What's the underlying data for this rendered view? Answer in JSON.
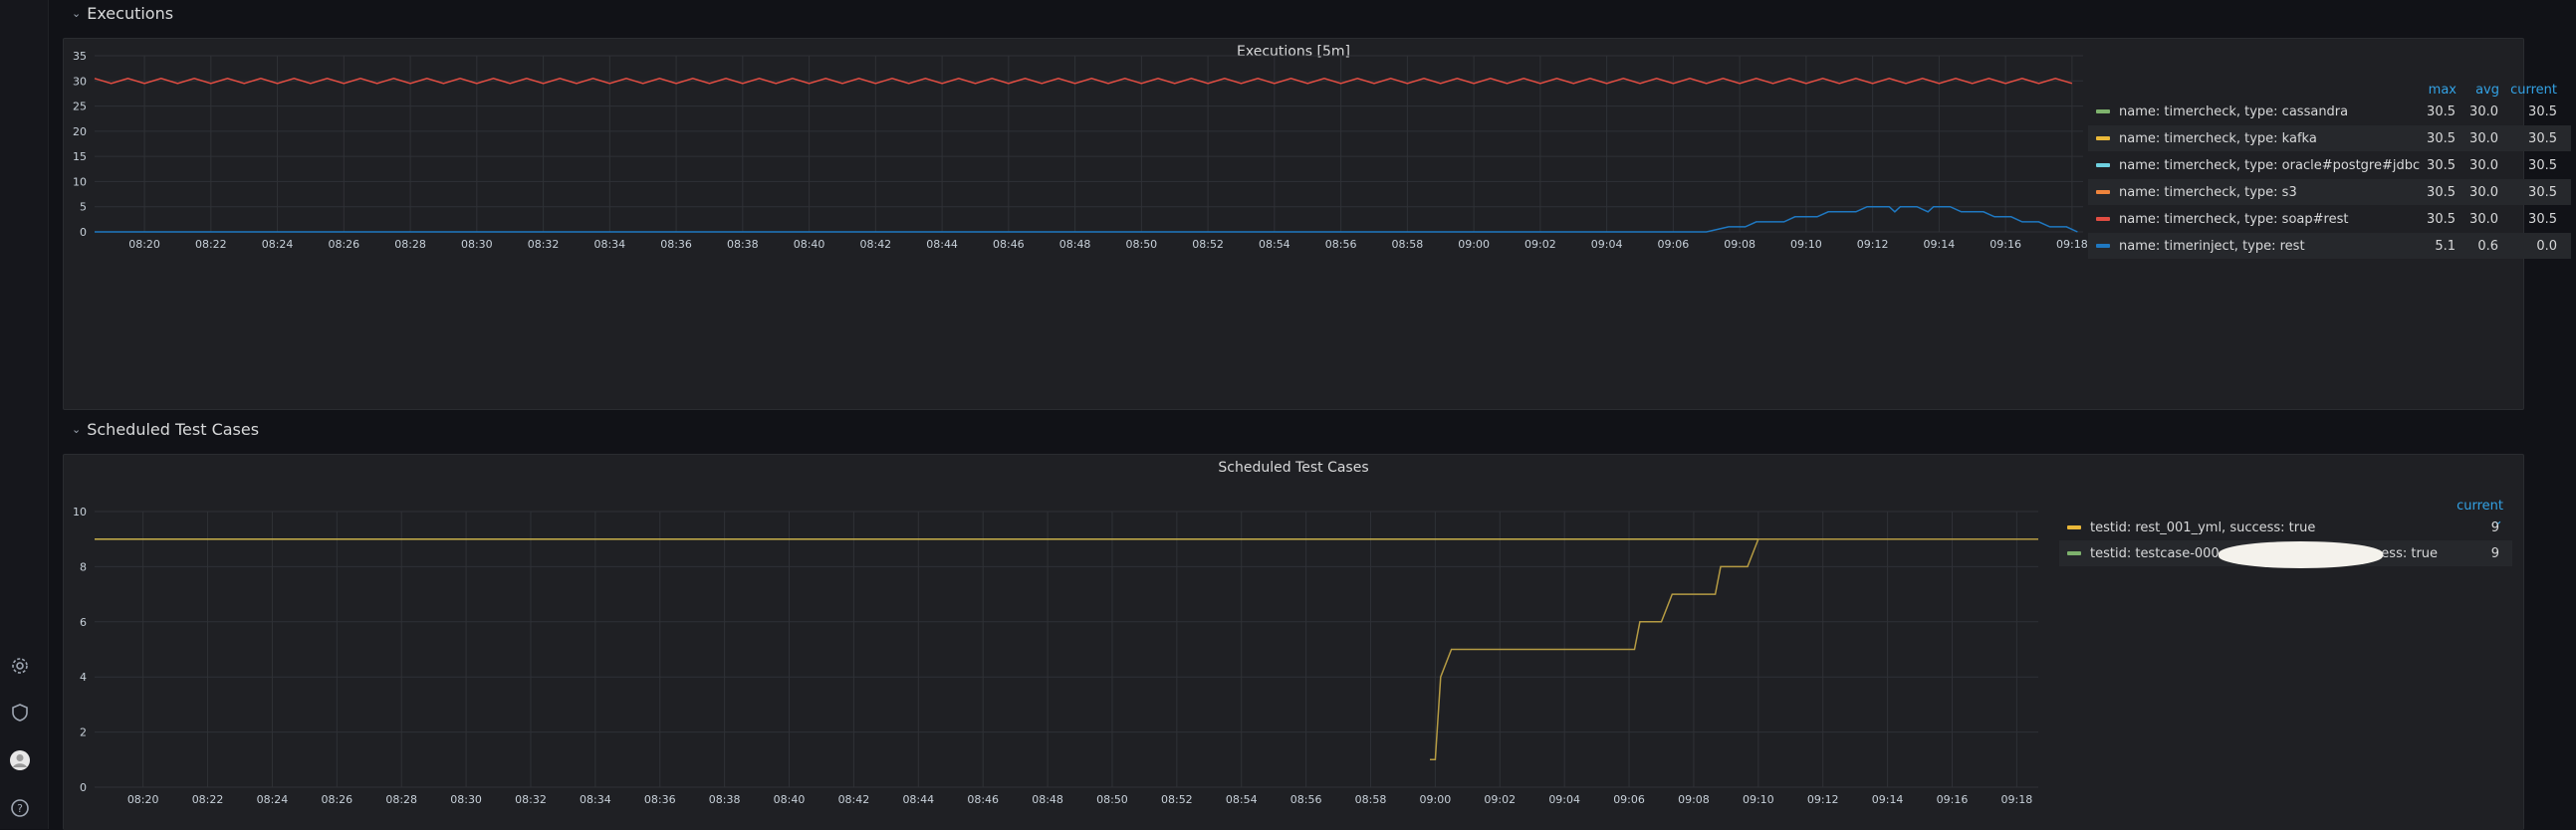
{
  "rows": [
    {
      "title": "Executions"
    },
    {
      "title": "Scheduled Test Cases"
    }
  ],
  "panels": [
    {
      "title": "Executions [5m]",
      "legend_headers": [
        "max",
        "avg",
        "current"
      ],
      "legend": [
        {
          "name": "name: timercheck, type: cassandra",
          "color": "#7eb26d",
          "max": "30.5",
          "avg": "30.0",
          "current": "30.5"
        },
        {
          "name": "name: timercheck, type: kafka",
          "color": "#eab839",
          "max": "30.5",
          "avg": "30.0",
          "current": "30.5"
        },
        {
          "name": "name: timercheck, type: oracle#postgre#jdbc",
          "color": "#6ed0e0",
          "max": "30.5",
          "avg": "30.0",
          "current": "30.5"
        },
        {
          "name": "name: timercheck, type: s3",
          "color": "#ef843c",
          "max": "30.5",
          "avg": "30.0",
          "current": "30.5"
        },
        {
          "name": "name: timercheck, type: soap#rest",
          "color": "#e24d42",
          "max": "30.5",
          "avg": "30.0",
          "current": "30.5"
        },
        {
          "name": "name: timerinject, type: rest",
          "color": "#1f78c1",
          "max": "5.1",
          "avg": "0.6",
          "current": "0.0"
        }
      ]
    },
    {
      "title": "Scheduled Test Cases",
      "legend_headers": [
        "current ⌄"
      ],
      "legend": [
        {
          "name": "testid: rest_001_yml, success: true",
          "color": "#eab839",
          "current": "9"
        },
        {
          "name": "testid: testcase-000",
          "name_suffix": "success: true",
          "color": "#7eb26d",
          "current": "9"
        }
      ]
    }
  ],
  "chart_data": [
    {
      "type": "line",
      "title": "Executions [5m]",
      "xlabel": "",
      "ylabel": "",
      "x_ticks": [
        "08:20",
        "08:22",
        "08:24",
        "08:26",
        "08:28",
        "08:30",
        "08:32",
        "08:34",
        "08:36",
        "08:38",
        "08:40",
        "08:42",
        "08:44",
        "08:46",
        "08:48",
        "08:50",
        "08:52",
        "08:54",
        "08:56",
        "08:58",
        "09:00",
        "09:02",
        "09:04",
        "09:06",
        "09:08",
        "09:10",
        "09:12",
        "09:14",
        "09:16",
        "09:18"
      ],
      "y_ticks": [
        "0",
        "5",
        "10",
        "15",
        "20",
        "25",
        "30",
        "35"
      ],
      "ylim": [
        0,
        35
      ],
      "xlim": [
        "08:18:30",
        "09:18:20"
      ],
      "grid": true,
      "legend_placement": "right",
      "series": [
        {
          "name": "name: timercheck, type: soap#rest (×5 timercheck series, overlapping)",
          "color": "#e24d42",
          "pattern": "oscillating",
          "min": 29.5,
          "max": 30.5,
          "period_minutes": 1
        },
        {
          "name": "name: timerinject, type: rest",
          "color": "#1f78c1",
          "points": [
            [
              "08:18:30",
              0
            ],
            [
              "09:07:00",
              0
            ],
            [
              "09:07:40",
              1
            ],
            [
              "09:08:10",
              1
            ],
            [
              "09:08:30",
              2
            ],
            [
              "09:09:20",
              2
            ],
            [
              "09:09:40",
              3
            ],
            [
              "09:10:20",
              3
            ],
            [
              "09:10:40",
              4
            ],
            [
              "09:11:30",
              4
            ],
            [
              "09:11:50",
              5
            ],
            [
              "09:12:30",
              5
            ],
            [
              "09:12:40",
              4
            ],
            [
              "09:12:50",
              5
            ],
            [
              "09:13:20",
              5
            ],
            [
              "09:13:40",
              4
            ],
            [
              "09:13:50",
              5
            ],
            [
              "09:14:20",
              5
            ],
            [
              "09:14:40",
              4
            ],
            [
              "09:15:20",
              4
            ],
            [
              "09:15:40",
              3
            ],
            [
              "09:16:10",
              3
            ],
            [
              "09:16:30",
              2
            ],
            [
              "09:17:00",
              2
            ],
            [
              "09:17:20",
              1
            ],
            [
              "09:17:50",
              1
            ],
            [
              "09:18:10",
              0
            ]
          ]
        }
      ]
    },
    {
      "type": "line",
      "title": "Scheduled Test Cases",
      "xlabel": "",
      "ylabel": "",
      "x_ticks": [
        "08:20",
        "08:22",
        "08:24",
        "08:26",
        "08:28",
        "08:30",
        "08:32",
        "08:34",
        "08:36",
        "08:38",
        "08:40",
        "08:42",
        "08:44",
        "08:46",
        "08:48",
        "08:50",
        "08:52",
        "08:54",
        "08:56",
        "08:58",
        "09:00",
        "09:02",
        "09:04",
        "09:06",
        "09:08",
        "09:10",
        "09:12",
        "09:14",
        "09:16",
        "09:18"
      ],
      "y_ticks": [
        "0",
        "2",
        "4",
        "6",
        "8",
        "10"
      ],
      "ylim": [
        0,
        10
      ],
      "xlim": [
        "08:18:30",
        "09:18:40"
      ],
      "grid": true,
      "legend_placement": "right",
      "series": [
        {
          "name": "testid: testcase-000…, success: true",
          "color": "#c8b04a",
          "points": [
            [
              "08:18:30",
              9
            ],
            [
              "09:18:40",
              9
            ]
          ]
        },
        {
          "name": "testid: rest_001_yml, success: true",
          "color": "#b59b43",
          "points": [
            [
              "08:59:50",
              1
            ],
            [
              "09:00:00",
              1
            ],
            [
              "09:00:10",
              4
            ],
            [
              "09:00:30",
              5
            ],
            [
              "09:06:10",
              5
            ],
            [
              "09:06:20",
              6
            ],
            [
              "09:07:00",
              6
            ],
            [
              "09:07:20",
              7
            ],
            [
              "09:08:40",
              7
            ],
            [
              "09:08:50",
              8
            ],
            [
              "09:09:40",
              8
            ],
            [
              "09:10:00",
              9
            ],
            [
              "09:18:40",
              9
            ]
          ]
        }
      ]
    }
  ],
  "sidemenu": {
    "icons": [
      "gear-icon",
      "shield-icon",
      "user-avatar-icon",
      "help-icon"
    ]
  }
}
